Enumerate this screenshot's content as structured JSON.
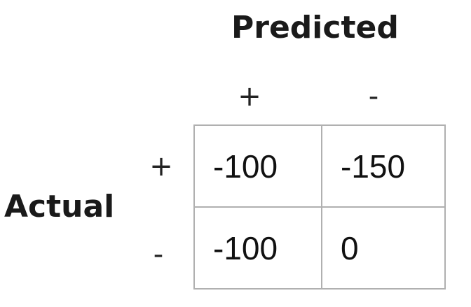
{
  "titles": {
    "predicted": "Predicted",
    "actual": "Actual"
  },
  "column_labels": [
    "+",
    "-"
  ],
  "row_labels": [
    "+",
    "-"
  ],
  "matrix": [
    [
      "-100",
      "-150"
    ],
    [
      "-100",
      "0"
    ]
  ],
  "colors": {
    "grid_border": "#b0b0b0",
    "text": "#111111"
  }
}
